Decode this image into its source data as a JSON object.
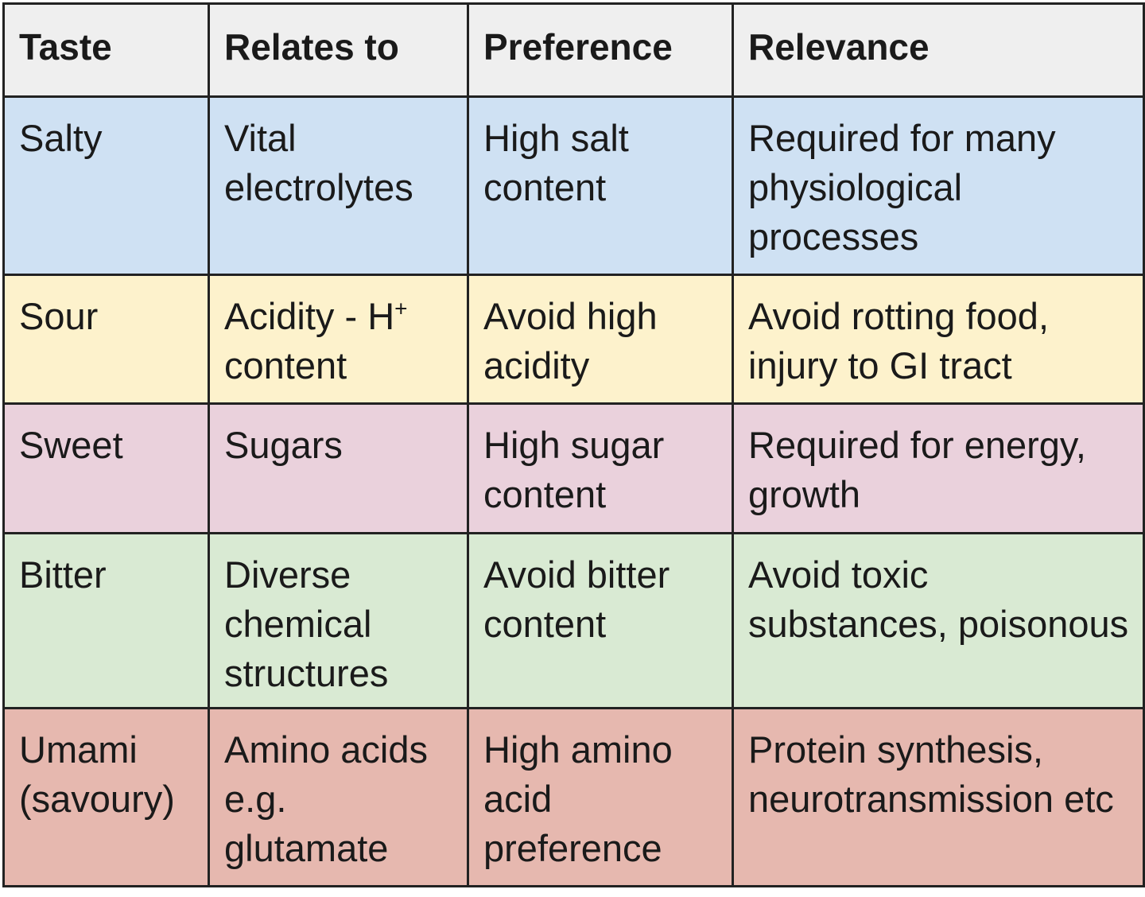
{
  "colors": {
    "header": "#efefef",
    "salty": "#cfe1f3",
    "sour": "#fdf2cc",
    "sweet": "#ead1dc",
    "bitter": "#d9ead3",
    "umami": "#e6b8af",
    "border": "#222222"
  },
  "table": {
    "headers": [
      "Taste",
      "Relates to",
      "Preference",
      "Relevance"
    ],
    "rows": [
      {
        "key": "salty",
        "taste": "Salty",
        "relates_to": "Vital electrolytes",
        "preference": "High salt content",
        "relevance": "Required for many physiological processes"
      },
      {
        "key": "sour",
        "taste": "Sour",
        "relates_to_main": "Acidity - H",
        "relates_to_sup": "+",
        "relates_to_rest": " content",
        "preference": "Avoid high acidity",
        "relevance": "Avoid rotting food, injury to GI tract"
      },
      {
        "key": "sweet",
        "taste": "Sweet",
        "relates_to": "Sugars",
        "preference": "High sugar content",
        "relevance": "Required for energy, growth"
      },
      {
        "key": "bitter",
        "taste": "Bitter",
        "relates_to": "Diverse chemical structures",
        "preference": "Avoid bitter content",
        "relevance": "Avoid toxic substances, poisonous"
      },
      {
        "key": "umami",
        "taste": "Umami (savoury)",
        "relates_to": "Amino acids e.g. glutamate",
        "preference": "High amino acid preference",
        "relevance": "Protein synthesis, neurotransmission etc"
      }
    ]
  }
}
